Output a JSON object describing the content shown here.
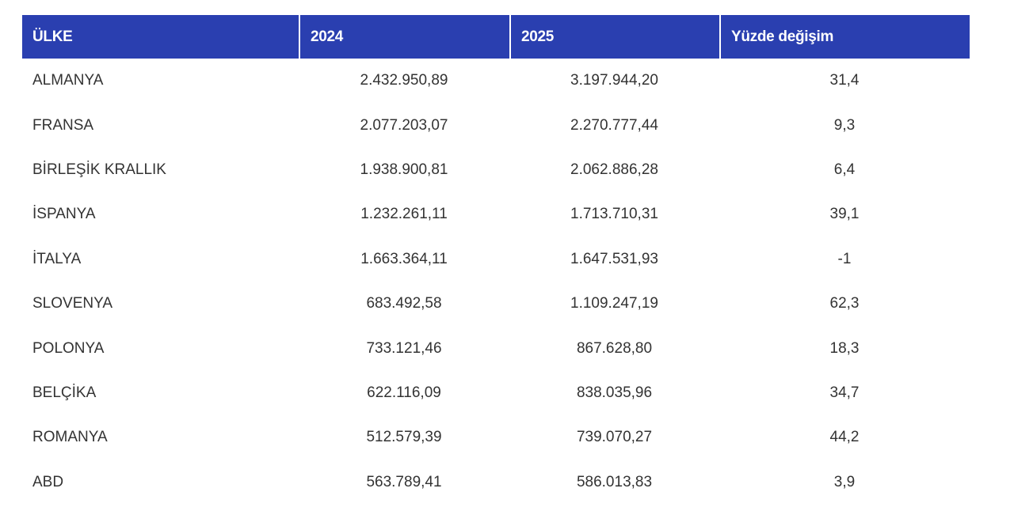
{
  "table": {
    "headers": [
      "ÜLKE",
      "2024",
      "2025",
      "Yüzde değişim"
    ],
    "rows": [
      {
        "country": "ALMANYA",
        "y2024": "2.432.950,89",
        "y2025": "3.197.944,20",
        "change": "31,4"
      },
      {
        "country": "FRANSA",
        "y2024": "2.077.203,07",
        "y2025": "2.270.777,44",
        "change": "9,3"
      },
      {
        "country": "BİRLEŞİK KRALLIK",
        "y2024": "1.938.900,81",
        "y2025": "2.062.886,28",
        "change": "6,4"
      },
      {
        "country": "İSPANYA",
        "y2024": "1.232.261,11",
        "y2025": "1.713.710,31",
        "change": "39,1"
      },
      {
        "country": "İTALYA",
        "y2024": "1.663.364,11",
        "y2025": "1.647.531,93",
        "change": "-1"
      },
      {
        "country": "SLOVENYA",
        "y2024": "683.492,58",
        "y2025": "1.109.247,19",
        "change": "62,3"
      },
      {
        "country": "POLONYA",
        "y2024": "733.121,46",
        "y2025": "867.628,80",
        "change": "18,3"
      },
      {
        "country": "BELÇİKA",
        "y2024": "622.116,09",
        "y2025": "838.035,96",
        "change": "34,7"
      },
      {
        "country": "ROMANYA",
        "y2024": "512.579,39",
        "y2025": "739.070,27",
        "change": "44,2"
      },
      {
        "country": "ABD",
        "y2024": "563.789,41",
        "y2025": "586.013,83",
        "change": "3,9"
      }
    ]
  },
  "colors": {
    "header_background": "#2a3fb0",
    "header_text": "#ffffff",
    "body_text": "#333333"
  }
}
